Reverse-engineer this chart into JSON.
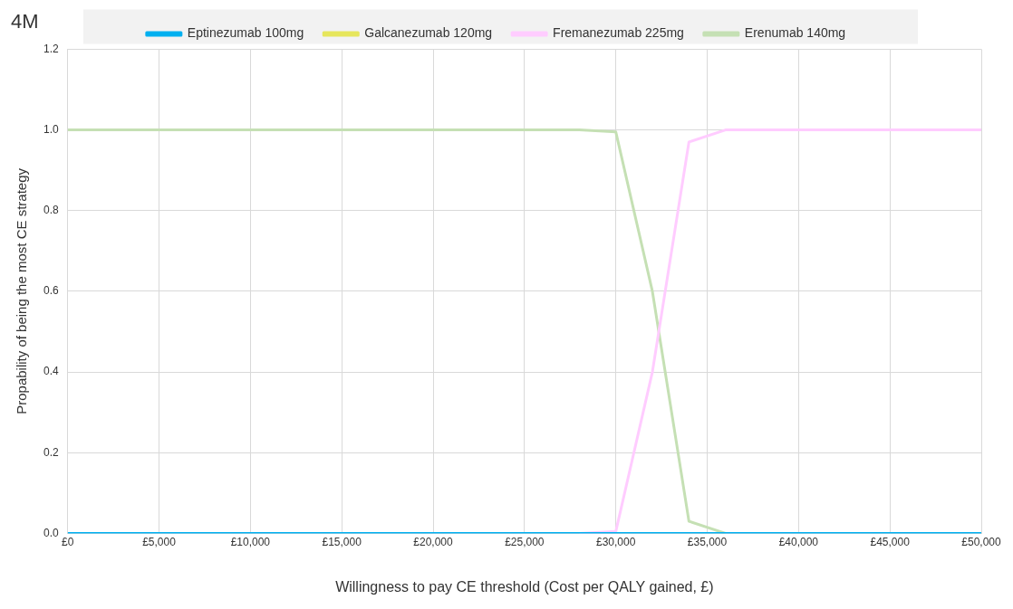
{
  "chart_data": {
    "type": "line",
    "title": "4M",
    "xlabel": "Willingness to pay CE threshold (Cost per QALY gained, £)",
    "ylabel": "Propability of being the most CE strategy",
    "x": [
      0,
      2000,
      4000,
      6000,
      8000,
      10000,
      12000,
      14000,
      16000,
      18000,
      20000,
      22000,
      24000,
      26000,
      28000,
      30000,
      32000,
      34000,
      36000,
      38000,
      40000,
      42000,
      44000,
      46000,
      48000,
      50000
    ],
    "series": [
      {
        "name": "Erenumab 140mg",
        "color": "#c5e0b4",
        "values": [
          1,
          1,
          1,
          1,
          1,
          1,
          1,
          1,
          1,
          1,
          1,
          1,
          1,
          1,
          1,
          0.995,
          0.6,
          0.03,
          0,
          null,
          null,
          null,
          null,
          null,
          null,
          null
        ]
      },
      {
        "name": "Fremanezumab 225mg",
        "color": "#ffccff",
        "values": [
          null,
          null,
          null,
          null,
          null,
          null,
          null,
          null,
          null,
          null,
          null,
          null,
          null,
          null,
          0,
          0.005,
          0.4,
          0.97,
          1,
          1,
          1,
          1,
          1,
          1,
          1,
          1
        ]
      },
      {
        "name": "Galcanezumab 120mg",
        "color": "#e6e65c",
        "values": [
          null,
          null,
          null,
          null,
          null,
          null,
          null,
          null,
          null,
          null,
          null,
          null,
          null,
          null,
          null,
          null,
          null,
          null,
          null,
          null,
          null,
          null,
          null,
          null,
          null,
          null
        ]
      },
      {
        "name": "Eptinezumab 100mg",
        "color": "#00b0f0",
        "values": [
          0,
          0,
          0,
          0,
          0,
          0,
          0,
          0,
          0,
          0,
          0,
          0,
          0,
          0,
          0,
          0,
          0,
          0,
          0,
          0,
          0,
          0,
          0,
          0,
          0,
          0
        ]
      }
    ],
    "xlim": [
      0,
      50000
    ],
    "xticks": [
      {
        "value": 0,
        "label": "£0"
      },
      {
        "value": 5000,
        "label": "£5,000"
      },
      {
        "value": 10000,
        "label": "£10,000"
      },
      {
        "value": 15000,
        "label": "£15,000"
      },
      {
        "value": 20000,
        "label": "£20,000"
      },
      {
        "value": 25000,
        "label": "£25,000"
      },
      {
        "value": 30000,
        "label": "£30,000"
      },
      {
        "value": 35000,
        "label": "£35,000"
      },
      {
        "value": 40000,
        "label": "£40,000"
      },
      {
        "value": 45000,
        "label": "£45,000"
      },
      {
        "value": 50000,
        "label": "£50,000"
      }
    ],
    "ylim": [
      0,
      1.2
    ],
    "yticks": [
      {
        "value": 0,
        "label": "0.0"
      },
      {
        "value": 0.2,
        "label": "0.2"
      },
      {
        "value": 0.4,
        "label": "0.4"
      },
      {
        "value": 0.6,
        "label": "0.6"
      },
      {
        "value": 0.8,
        "label": "0.8"
      },
      {
        "value": 1,
        "label": "1.0"
      },
      {
        "value": 1.2,
        "label": "1.2"
      }
    ],
    "grid": true,
    "legend": "top",
    "marker": "none",
    "line_style": "solid"
  }
}
